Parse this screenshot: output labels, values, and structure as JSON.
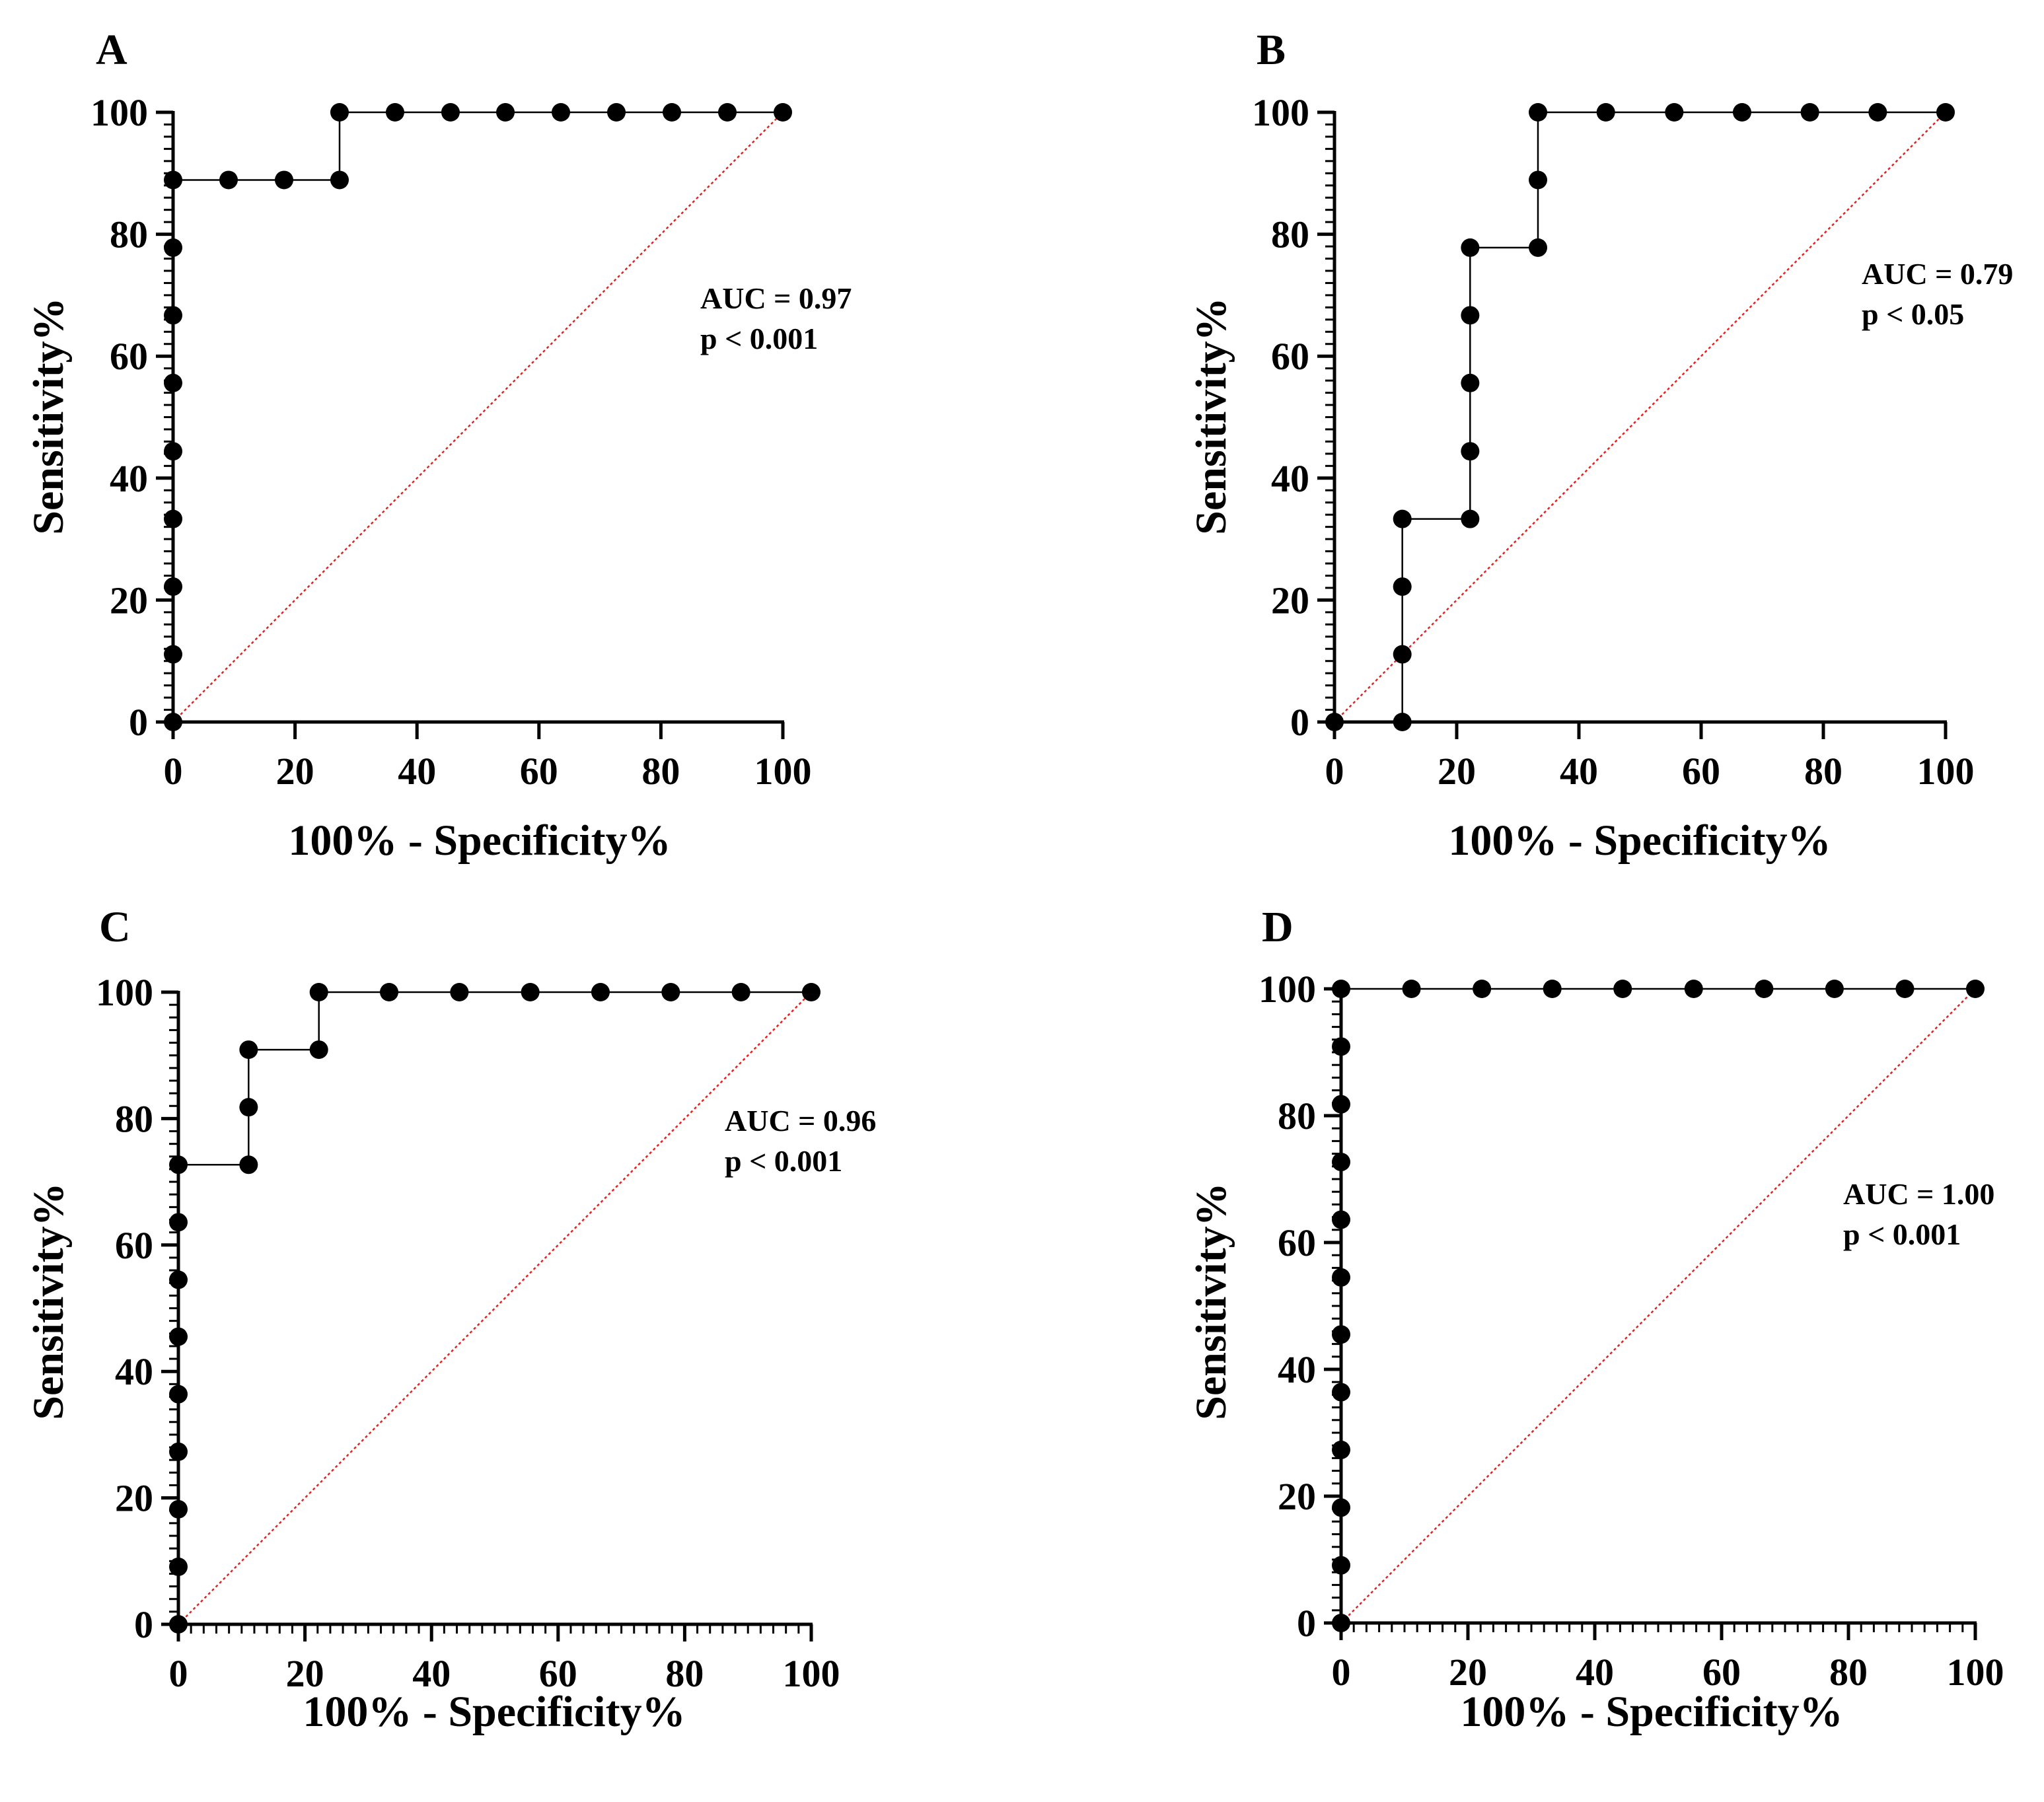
{
  "figure": {
    "description_free": true
  },
  "chart_data": [
    {
      "panel": "A",
      "type": "line",
      "title": "",
      "xlabel": "100% - Specificity%",
      "ylabel": "Sensitivity%",
      "xlim": [
        0,
        100
      ],
      "ylim": [
        0,
        100
      ],
      "xticks": [
        0,
        20,
        40,
        60,
        80,
        100
      ],
      "yticks": [
        0,
        20,
        40,
        60,
        80,
        100
      ],
      "minor_ticks": false,
      "annotations": [
        "AUC = 0.97",
        "p < 0.001"
      ],
      "auc": 0.97,
      "series": [
        {
          "name": "ROC",
          "x": [
            0,
            0,
            0,
            0,
            0,
            0,
            0,
            0,
            0,
            9.1,
            18.2,
            27.3,
            27.3,
            36.4,
            45.5,
            54.5,
            63.6,
            72.7,
            81.8,
            90.9,
            100
          ],
          "y": [
            0,
            11.1,
            22.2,
            33.3,
            44.4,
            55.6,
            66.7,
            77.8,
            88.9,
            88.9,
            88.9,
            88.9,
            100,
            100,
            100,
            100,
            100,
            100,
            100,
            100,
            100
          ]
        },
        {
          "name": "Reference",
          "x": [
            0,
            100
          ],
          "y": [
            0,
            100
          ]
        }
      ],
      "colors": {
        "roc": "#000000",
        "reference": "#e8211f"
      }
    },
    {
      "panel": "B",
      "type": "line",
      "title": "",
      "xlabel": "100% - Specificity%",
      "ylabel": "Sensitivity%",
      "xlim": [
        0,
        100
      ],
      "ylim": [
        0,
        100
      ],
      "xticks": [
        0,
        20,
        40,
        60,
        80,
        100
      ],
      "yticks": [
        0,
        20,
        40,
        60,
        80,
        100
      ],
      "minor_ticks": false,
      "annotations": [
        "AUC = 0.79",
        "p < 0.05"
      ],
      "auc": 0.79,
      "series": [
        {
          "name": "ROC",
          "x": [
            0,
            11.1,
            11.1,
            11.1,
            11.1,
            22.2,
            22.2,
            22.2,
            22.2,
            22.2,
            33.3,
            33.3,
            33.3,
            44.4,
            55.6,
            66.7,
            77.8,
            88.9,
            100
          ],
          "y": [
            0,
            0,
            11.1,
            22.2,
            33.3,
            33.3,
            44.4,
            55.6,
            66.7,
            77.8,
            77.8,
            88.9,
            100,
            100,
            100,
            100,
            100,
            100,
            100
          ]
        },
        {
          "name": "Reference",
          "x": [
            0,
            100
          ],
          "y": [
            0,
            100
          ]
        }
      ],
      "colors": {
        "roc": "#000000",
        "reference": "#e8211f"
      }
    },
    {
      "panel": "C",
      "type": "line",
      "title": "",
      "xlabel": "100% - Specificity%",
      "ylabel": "Sensitivity%",
      "xlim": [
        0,
        100
      ],
      "ylim": [
        0,
        100
      ],
      "xticks": [
        0,
        20,
        40,
        60,
        80,
        100
      ],
      "yticks": [
        0,
        20,
        40,
        60,
        80,
        100
      ],
      "minor_ticks": true,
      "annotations": [
        "AUC = 0.96",
        "p < 0.001"
      ],
      "auc": 0.96,
      "series": [
        {
          "name": "ROC",
          "x": [
            0,
            0,
            0,
            0,
            0,
            0,
            0,
            0,
            0,
            11.1,
            11.1,
            11.1,
            22.2,
            22.2,
            33.3,
            44.4,
            55.6,
            66.7,
            77.8,
            88.9,
            100
          ],
          "y": [
            0,
            9.1,
            18.2,
            27.3,
            36.4,
            45.5,
            54.5,
            63.6,
            72.7,
            72.7,
            81.8,
            90.9,
            90.9,
            100,
            100,
            100,
            100,
            100,
            100,
            100,
            100
          ]
        },
        {
          "name": "Reference",
          "x": [
            0,
            100
          ],
          "y": [
            0,
            100
          ]
        }
      ],
      "colors": {
        "roc": "#000000",
        "reference": "#e8211f"
      }
    },
    {
      "panel": "D",
      "type": "line",
      "title": "",
      "xlabel": "100% - Specificity%",
      "ylabel": "Sensitivity%",
      "xlim": [
        0,
        100
      ],
      "ylim": [
        0,
        100
      ],
      "xticks": [
        0,
        20,
        40,
        60,
        80,
        100
      ],
      "yticks": [
        0,
        20,
        40,
        60,
        80,
        100
      ],
      "minor_ticks": true,
      "annotations": [
        "AUC = 1.00",
        "p < 0.001"
      ],
      "auc": 1.0,
      "series": [
        {
          "name": "ROC",
          "x": [
            0,
            0,
            0,
            0,
            0,
            0,
            0,
            0,
            0,
            0,
            0,
            0,
            11.1,
            22.2,
            33.3,
            44.4,
            55.6,
            66.7,
            77.8,
            88.9,
            100
          ],
          "y": [
            0,
            9.1,
            18.2,
            27.3,
            36.4,
            45.5,
            54.5,
            63.6,
            72.7,
            81.8,
            90.9,
            100,
            100,
            100,
            100,
            100,
            100,
            100,
            100,
            100,
            100
          ]
        },
        {
          "name": "Reference",
          "x": [
            0,
            100
          ],
          "y": [
            0,
            100
          ]
        }
      ],
      "colors": {
        "roc": "#000000",
        "reference": "#e8211f"
      }
    }
  ]
}
